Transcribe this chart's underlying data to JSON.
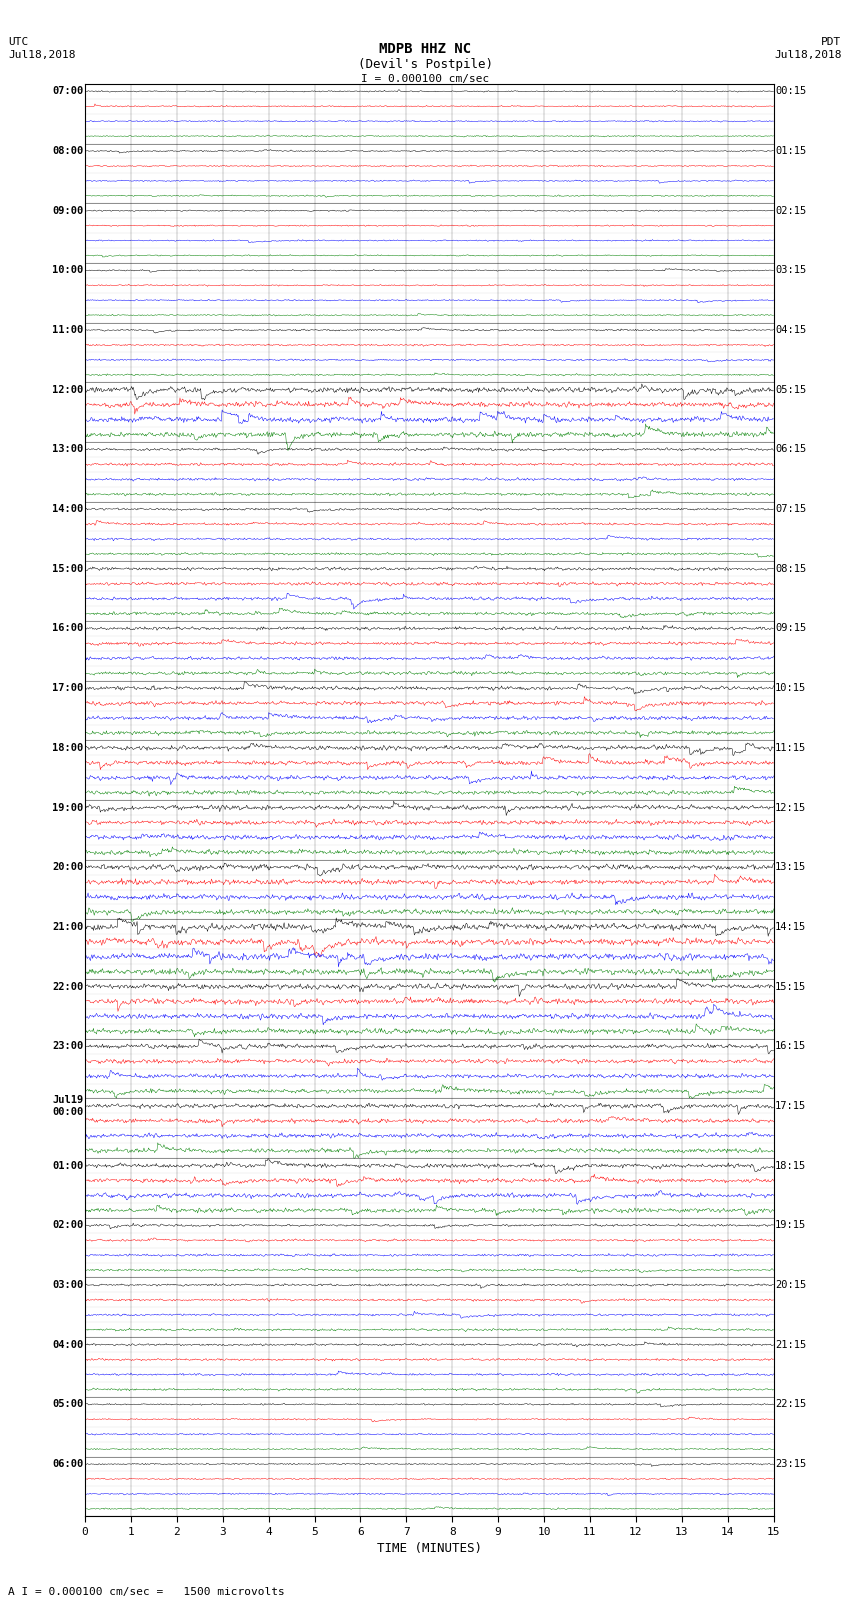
{
  "title_line1": "MDPB HHZ NC",
  "title_line2": "(Devil's Postpile)",
  "scale_text": "I = 0.000100 cm/sec",
  "bottom_scale_text": "A I = 0.000100 cm/sec =   1500 microvolts",
  "xlabel": "TIME (MINUTES)",
  "figsize": [
    8.5,
    16.13
  ],
  "dpi": 100,
  "bg_color": "#ffffff",
  "trace_colors": [
    "black",
    "red",
    "blue",
    "green"
  ],
  "left_times_utc": [
    "07:00",
    "08:00",
    "09:00",
    "10:00",
    "11:00",
    "12:00",
    "13:00",
    "14:00",
    "15:00",
    "16:00",
    "17:00",
    "18:00",
    "19:00",
    "20:00",
    "21:00",
    "22:00",
    "23:00",
    "Jul19\n00:00",
    "01:00",
    "02:00",
    "03:00",
    "04:00",
    "05:00",
    "06:00"
  ],
  "right_times_pdt": [
    "00:15",
    "01:15",
    "02:15",
    "03:15",
    "04:15",
    "05:15",
    "06:15",
    "07:15",
    "08:15",
    "09:15",
    "10:15",
    "11:15",
    "12:15",
    "13:15",
    "14:15",
    "15:15",
    "16:15",
    "17:15",
    "18:15",
    "19:15",
    "20:15",
    "21:15",
    "22:15",
    "23:15"
  ],
  "n_hours": 24,
  "traces_per_hour": 4,
  "minutes": 15,
  "x_ticks": [
    0,
    1,
    2,
    3,
    4,
    5,
    6,
    7,
    8,
    9,
    10,
    11,
    12,
    13,
    14,
    15
  ],
  "base_noise": 0.04,
  "seed": 12345
}
